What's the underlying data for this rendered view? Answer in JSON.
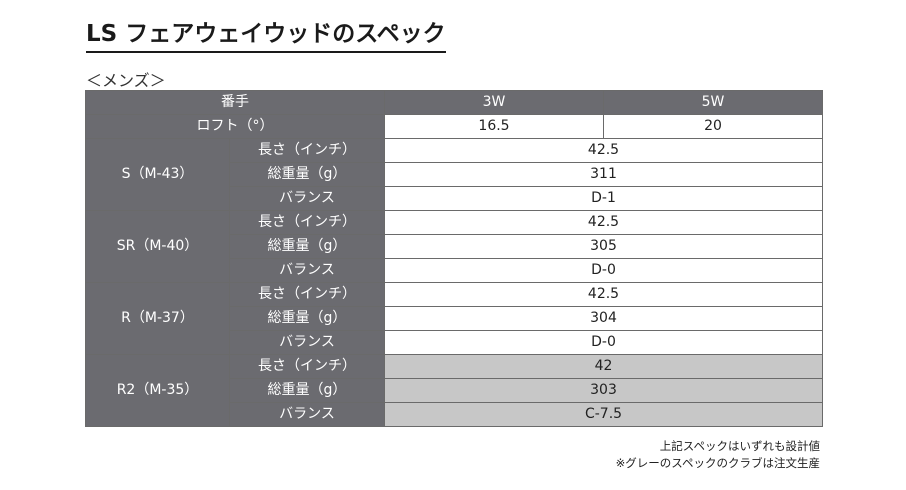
{
  "title": "LS フェアウェイウッドのスペック",
  "section_label": "＜メンズ＞",
  "header": {
    "label": "番手",
    "clubs": [
      "3W",
      "5W"
    ]
  },
  "loft": {
    "label": "ロフト（°）",
    "values": [
      "16.5",
      "20"
    ]
  },
  "row_labels": {
    "length": "長さ（インチ）",
    "weight": "総重量（g）",
    "balance": "バランス"
  },
  "shafts": [
    {
      "name": "S（M-43）",
      "length": "42.5",
      "weight": "311",
      "balance": "D-1",
      "made_to_order": false
    },
    {
      "name": "SR（M-40）",
      "length": "42.5",
      "weight": "305",
      "balance": "D-0",
      "made_to_order": false
    },
    {
      "name": "R（M-37）",
      "length": "42.5",
      "weight": "304",
      "balance": "D-0",
      "made_to_order": false
    },
    {
      "name": "R2（M-35）",
      "length": "42",
      "weight": "303",
      "balance": "C-7.5",
      "made_to_order": true
    }
  ],
  "notes": [
    "上記スペックはいずれも設計値",
    "※グレーのスペックのクラブは注文生産"
  ],
  "colors": {
    "header_bg": "#6b6b70",
    "made_to_order_bg": "#c7c7c7"
  }
}
